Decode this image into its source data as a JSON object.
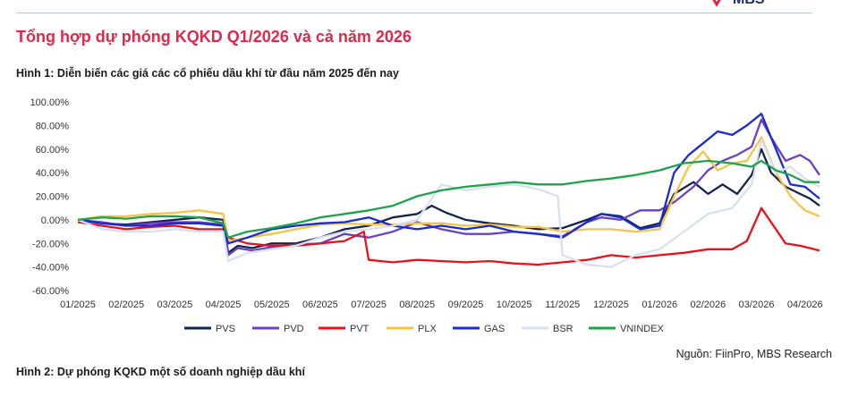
{
  "header": {
    "logo_text": "MBS"
  },
  "section_title": "Tổng hợp dự phóng KQKD Q1/2026 và cả năm 2026",
  "figure1_caption": "Hình 1: Diễn biến các giá các cổ phiếu dầu khí từ đầu năm 2025 đến nay",
  "figure2_caption": "Hình 2: Dự phóng KQKD một số doanh nghiệp dầu khí",
  "source": "Nguồn: FiinPro, MBS Research",
  "colors": {
    "accent_title": "#e0294a",
    "gridline": "#d9d9d9"
  },
  "chart_data": {
    "type": "line",
    "x_labels": [
      "01/2025",
      "02/2025",
      "03/2025",
      "04/2025",
      "05/2025",
      "06/2025",
      "07/2025",
      "08/2025",
      "09/2025",
      "10/2025",
      "11/2025",
      "12/2025",
      "01/2026",
      "02/2026",
      "03/2026",
      "04/2026"
    ],
    "y_tick_labels": [
      "100.00%",
      "80.00%",
      "60.00%",
      "40.00%",
      "20.00%",
      "0.00%",
      "-20.00%",
      "-40.00%",
      "-60.00%"
    ],
    "ylim": [
      -60,
      100
    ],
    "xlim": [
      0,
      15.3
    ],
    "grid": false,
    "legend_position": "bottom",
    "series": [
      {
        "name": "PVS",
        "color": "#14244f",
        "points": [
          [
            0,
            0
          ],
          [
            0.5,
            -3
          ],
          [
            1,
            -4
          ],
          [
            1.5,
            -2
          ],
          [
            2,
            0
          ],
          [
            2.5,
            2
          ],
          [
            3,
            0
          ],
          [
            3.1,
            -28
          ],
          [
            3.3,
            -22
          ],
          [
            3.6,
            -24
          ],
          [
            4,
            -20
          ],
          [
            4.5,
            -20
          ],
          [
            5,
            -15
          ],
          [
            5.5,
            -8
          ],
          [
            6,
            -5
          ],
          [
            6.5,
            2
          ],
          [
            7,
            5
          ],
          [
            7.3,
            12
          ],
          [
            7.6,
            6
          ],
          [
            8,
            0
          ],
          [
            8.5,
            -3
          ],
          [
            9,
            -5
          ],
          [
            9.5,
            -8
          ],
          [
            10,
            -7
          ],
          [
            10.5,
            0
          ],
          [
            10.8,
            5
          ],
          [
            11.2,
            3
          ],
          [
            11.6,
            -7
          ],
          [
            12,
            -3
          ],
          [
            12.3,
            22
          ],
          [
            12.7,
            32
          ],
          [
            13,
            22
          ],
          [
            13.3,
            30
          ],
          [
            13.6,
            22
          ],
          [
            13.9,
            38
          ],
          [
            14.1,
            60
          ],
          [
            14.3,
            40
          ],
          [
            14.6,
            28
          ],
          [
            14.9,
            22
          ],
          [
            15.1,
            18
          ],
          [
            15.3,
            12
          ]
        ]
      },
      {
        "name": "PVD",
        "color": "#6a40c4",
        "points": [
          [
            0,
            0
          ],
          [
            0.5,
            -2
          ],
          [
            1,
            -5
          ],
          [
            1.5,
            -3
          ],
          [
            2,
            -2
          ],
          [
            2.5,
            -2
          ],
          [
            3,
            -4
          ],
          [
            3.1,
            -30
          ],
          [
            3.3,
            -24
          ],
          [
            3.6,
            -26
          ],
          [
            4,
            -23
          ],
          [
            4.5,
            -21
          ],
          [
            5,
            -20
          ],
          [
            5.5,
            -12
          ],
          [
            6,
            -15
          ],
          [
            6.5,
            -10
          ],
          [
            7,
            -2
          ],
          [
            7.5,
            -8
          ],
          [
            8,
            -12
          ],
          [
            8.5,
            -12
          ],
          [
            9,
            -10
          ],
          [
            9.5,
            -12
          ],
          [
            10,
            -14
          ],
          [
            10.5,
            -2
          ],
          [
            10.8,
            2
          ],
          [
            11.2,
            0
          ],
          [
            11.6,
            8
          ],
          [
            12,
            8
          ],
          [
            12.3,
            15
          ],
          [
            12.7,
            28
          ],
          [
            13,
            42
          ],
          [
            13.3,
            50
          ],
          [
            13.6,
            55
          ],
          [
            13.9,
            62
          ],
          [
            14.1,
            85
          ],
          [
            14.3,
            70
          ],
          [
            14.6,
            50
          ],
          [
            14.9,
            55
          ],
          [
            15.1,
            50
          ],
          [
            15.3,
            38
          ]
        ]
      },
      {
        "name": "PVT",
        "color": "#e8121a",
        "points": [
          [
            0,
            -2
          ],
          [
            0.5,
            -5
          ],
          [
            1,
            -8
          ],
          [
            1.5,
            -6
          ],
          [
            2,
            -5
          ],
          [
            2.5,
            -8
          ],
          [
            3,
            -8
          ],
          [
            3.1,
            -15
          ],
          [
            3.5,
            -20
          ],
          [
            4,
            -22
          ],
          [
            4.5,
            -22
          ],
          [
            5,
            -20
          ],
          [
            5.5,
            -18
          ],
          [
            5.9,
            -10
          ],
          [
            6,
            -34
          ],
          [
            6.5,
            -36
          ],
          [
            7,
            -34
          ],
          [
            7.5,
            -35
          ],
          [
            8,
            -36
          ],
          [
            8.5,
            -35
          ],
          [
            9,
            -37
          ],
          [
            9.5,
            -38
          ],
          [
            10,
            -36
          ],
          [
            10.5,
            -34
          ],
          [
            11,
            -30
          ],
          [
            11.5,
            -32
          ],
          [
            12,
            -30
          ],
          [
            12.5,
            -28
          ],
          [
            13,
            -25
          ],
          [
            13.5,
            -25
          ],
          [
            13.8,
            -18
          ],
          [
            14.1,
            10
          ],
          [
            14.4,
            -8
          ],
          [
            14.6,
            -20
          ],
          [
            14.9,
            -22
          ],
          [
            15.1,
            -24
          ],
          [
            15.3,
            -26
          ]
        ]
      },
      {
        "name": "PLX",
        "color": "#f6c445",
        "points": [
          [
            0,
            0
          ],
          [
            0.5,
            3
          ],
          [
            1,
            3
          ],
          [
            1.5,
            5
          ],
          [
            2,
            6
          ],
          [
            2.5,
            8
          ],
          [
            3,
            5
          ],
          [
            3.1,
            -18
          ],
          [
            3.5,
            -15
          ],
          [
            4,
            -12
          ],
          [
            4.5,
            -8
          ],
          [
            5,
            -4
          ],
          [
            5.5,
            -3
          ],
          [
            6,
            -4
          ],
          [
            6.5,
            -4
          ],
          [
            7,
            -3
          ],
          [
            7.5,
            -3
          ],
          [
            8,
            -5
          ],
          [
            8.5,
            -4
          ],
          [
            9,
            -6
          ],
          [
            9.5,
            -6
          ],
          [
            10,
            -10
          ],
          [
            10.5,
            -8
          ],
          [
            11,
            -8
          ],
          [
            11.5,
            -10
          ],
          [
            12,
            -8
          ],
          [
            12.3,
            20
          ],
          [
            12.6,
            45
          ],
          [
            12.9,
            58
          ],
          [
            13.2,
            42
          ],
          [
            13.5,
            48
          ],
          [
            13.8,
            50
          ],
          [
            14.1,
            70
          ],
          [
            14.4,
            40
          ],
          [
            14.7,
            20
          ],
          [
            15,
            8
          ],
          [
            15.3,
            3
          ]
        ]
      },
      {
        "name": "GAS",
        "color": "#1a2ccf",
        "points": [
          [
            0,
            0
          ],
          [
            0.5,
            -3
          ],
          [
            1,
            -5
          ],
          [
            1.5,
            -5
          ],
          [
            2,
            -3
          ],
          [
            2.5,
            -3
          ],
          [
            3,
            -5
          ],
          [
            3.1,
            -20
          ],
          [
            3.5,
            -15
          ],
          [
            4,
            -8
          ],
          [
            4.5,
            -5
          ],
          [
            5,
            -3
          ],
          [
            5.5,
            -2
          ],
          [
            6,
            2
          ],
          [
            6.5,
            -5
          ],
          [
            7,
            -8
          ],
          [
            7.5,
            -5
          ],
          [
            8,
            -8
          ],
          [
            8.5,
            -5
          ],
          [
            9,
            -10
          ],
          [
            9.5,
            -12
          ],
          [
            10,
            -15
          ],
          [
            10.5,
            -2
          ],
          [
            10.8,
            5
          ],
          [
            11.2,
            2
          ],
          [
            11.6,
            -8
          ],
          [
            12,
            -5
          ],
          [
            12.3,
            40
          ],
          [
            12.6,
            55
          ],
          [
            12.9,
            65
          ],
          [
            13.2,
            75
          ],
          [
            13.5,
            72
          ],
          [
            13.8,
            80
          ],
          [
            14.1,
            90
          ],
          [
            14.4,
            60
          ],
          [
            14.7,
            30
          ],
          [
            15,
            28
          ],
          [
            15.3,
            18
          ]
        ]
      },
      {
        "name": "BSR",
        "color": "#d7e0f0",
        "points": [
          [
            0,
            0
          ],
          [
            0.5,
            -8
          ],
          [
            1,
            -10
          ],
          [
            1.5,
            -10
          ],
          [
            2,
            -8
          ],
          [
            2.5,
            -10
          ],
          [
            3,
            -10
          ],
          [
            3.1,
            -35
          ],
          [
            3.5,
            -28
          ],
          [
            4,
            -25
          ],
          [
            4.5,
            -22
          ],
          [
            5,
            -15
          ],
          [
            5.5,
            -10
          ],
          [
            6,
            -8
          ],
          [
            6.5,
            -5
          ],
          [
            7,
            0
          ],
          [
            7.5,
            30
          ],
          [
            8,
            25
          ],
          [
            8.5,
            28
          ],
          [
            9,
            30
          ],
          [
            9.5,
            26
          ],
          [
            9.9,
            20
          ],
          [
            10,
            -30
          ],
          [
            10.5,
            -38
          ],
          [
            11,
            -40
          ],
          [
            11.5,
            -30
          ],
          [
            12,
            -25
          ],
          [
            12.5,
            -10
          ],
          [
            13,
            5
          ],
          [
            13.5,
            10
          ],
          [
            13.9,
            30
          ],
          [
            14.1,
            68
          ],
          [
            14.4,
            40
          ],
          [
            14.7,
            45
          ],
          [
            15,
            35
          ],
          [
            15.3,
            28
          ]
        ]
      },
      {
        "name": "VNINDEX",
        "color": "#1ea34a",
        "points": [
          [
            0,
            0
          ],
          [
            0.5,
            2
          ],
          [
            1,
            1
          ],
          [
            1.5,
            3
          ],
          [
            2,
            3
          ],
          [
            2.5,
            2
          ],
          [
            3,
            -3
          ],
          [
            3.1,
            -15
          ],
          [
            3.5,
            -10
          ],
          [
            4,
            -7
          ],
          [
            4.5,
            -3
          ],
          [
            5,
            2
          ],
          [
            5.5,
            5
          ],
          [
            6,
            8
          ],
          [
            6.5,
            12
          ],
          [
            7,
            20
          ],
          [
            7.5,
            25
          ],
          [
            8,
            28
          ],
          [
            8.5,
            30
          ],
          [
            9,
            32
          ],
          [
            9.5,
            30
          ],
          [
            10,
            30
          ],
          [
            10.5,
            33
          ],
          [
            11,
            35
          ],
          [
            11.5,
            38
          ],
          [
            12,
            42
          ],
          [
            12.5,
            48
          ],
          [
            13,
            50
          ],
          [
            13.5,
            48
          ],
          [
            13.9,
            45
          ],
          [
            14.1,
            50
          ],
          [
            14.4,
            42
          ],
          [
            14.7,
            38
          ],
          [
            15,
            32
          ],
          [
            15.3,
            32
          ]
        ]
      }
    ]
  }
}
